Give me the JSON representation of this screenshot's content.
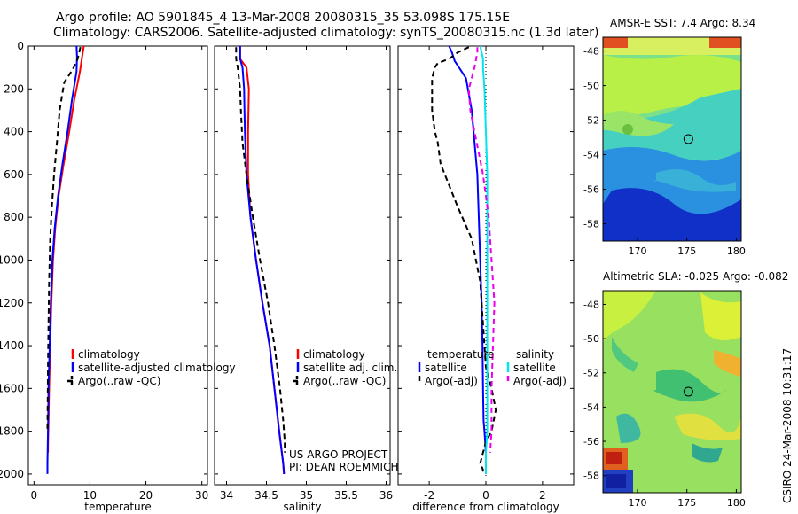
{
  "title_line1": "Argo profile: AO 5901845_4 13-Mar-2008 20080315_35 53.098S 175.15E",
  "title_line2": "Climatology: CARS2006. Satellite-adjusted climatology: synTS_20080315.nc (1.3d later)",
  "map_titles": [
    "AMSR-E SST: 7.4 Argo: 8.34",
    "Altimetric SLA: -0.025 Argo: -0.082"
  ],
  "side_stamp": "CSIRO 24-Mar-2008 10:31:17",
  "project_note": [
    "US ARGO PROJECT",
    "PI: DEAN ROEMMICH"
  ],
  "colors": {
    "climatology": "#ff0000",
    "satellite": "#0000ff",
    "argo": "#000000",
    "sat_diff_sal": "#00e5ee",
    "argo_diff_sal": "#ee00ee"
  },
  "chart_data": [
    {
      "type": "line",
      "xlabel": "temperature",
      "ylabel": "",
      "xlim": [
        -1,
        31
      ],
      "ylim": [
        2050,
        0
      ],
      "xticks": [
        0,
        10,
        20,
        30
      ],
      "yticks": [
        0,
        200,
        400,
        600,
        800,
        1000,
        1200,
        1400,
        1600,
        1800,
        2000
      ],
      "legend": [
        "climatology",
        "satellite-adjusted climatology",
        "Argo(..raw -QC)"
      ],
      "series": [
        {
          "name": "climatology",
          "color": "#ff0000",
          "dash": "",
          "x": [
            8.9,
            8.6,
            8.2,
            7.2,
            6.3,
            5.3,
            4.4,
            3.8,
            3.4,
            3.1,
            2.9,
            2.7,
            2.6,
            2.5,
            2.5
          ],
          "y": [
            0,
            50,
            120,
            250,
            400,
            550,
            700,
            850,
            1000,
            1200,
            1400,
            1600,
            1750,
            1870,
            1900
          ]
        },
        {
          "name": "satellite-adjusted climatology",
          "color": "#0000ff",
          "dash": "",
          "x": [
            7.6,
            7.7,
            7.6,
            6.8,
            6.0,
            5.1,
            4.3,
            3.7,
            3.3,
            3.0,
            2.8,
            2.6,
            2.5,
            2.4,
            2.4
          ],
          "y": [
            0,
            50,
            120,
            250,
            400,
            550,
            700,
            850,
            1000,
            1200,
            1400,
            1600,
            1800,
            1950,
            2000
          ]
        },
        {
          "name": "Argo(..raw -QC)",
          "color": "#000000",
          "dash": "6,4",
          "x": [
            8.3,
            7.8,
            6.9,
            5.4,
            4.6,
            4.1,
            3.6,
            3.2,
            2.9,
            2.7,
            2.6,
            2.5,
            2.45,
            2.4,
            2.4
          ],
          "y": [
            5,
            60,
            110,
            170,
            300,
            450,
            600,
            750,
            900,
            1100,
            1300,
            1500,
            1650,
            1780,
            1800
          ]
        }
      ]
    },
    {
      "type": "line",
      "xlabel": "salinity",
      "ylabel": "",
      "xlim": [
        33.85,
        36.05
      ],
      "ylim": [
        2050,
        0
      ],
      "xticks": [
        34,
        34.5,
        35,
        35.5,
        36
      ],
      "yticks": [
        0,
        200,
        400,
        600,
        800,
        1000,
        1200,
        1400,
        1600,
        1800,
        2000
      ],
      "legend": [
        "climatology",
        "satellite adj. clim.",
        "Argo(..raw -QC)"
      ],
      "series": [
        {
          "name": "climatology",
          "color": "#ff0000",
          "dash": "",
          "x": [
            34.17,
            34.17,
            34.25,
            34.28,
            34.27,
            34.27,
            34.3,
            34.37,
            34.45,
            34.54,
            34.6,
            34.66,
            34.71,
            34.72
          ],
          "y": [
            0,
            60,
            100,
            200,
            400,
            600,
            800,
            1000,
            1200,
            1400,
            1600,
            1800,
            1950,
            2000
          ]
        },
        {
          "name": "satellite adj. clim.",
          "color": "#0000ff",
          "dash": "",
          "x": [
            34.17,
            34.17,
            34.2,
            34.22,
            34.23,
            34.25,
            34.3,
            34.37,
            34.45,
            34.54,
            34.6,
            34.66,
            34.71,
            34.72
          ],
          "y": [
            0,
            60,
            100,
            200,
            400,
            600,
            800,
            1000,
            1200,
            1400,
            1600,
            1800,
            1950,
            2000
          ]
        },
        {
          "name": "Argo(..raw -QC)",
          "color": "#000000",
          "dash": "6,4",
          "x": [
            34.12,
            34.12,
            34.14,
            34.17,
            34.18,
            34.2,
            34.25,
            34.33,
            34.42,
            34.52,
            34.6,
            34.67,
            34.71,
            34.73,
            34.73
          ],
          "y": [
            5,
            60,
            100,
            200,
            300,
            450,
            600,
            800,
            1000,
            1200,
            1400,
            1600,
            1750,
            1850,
            1900
          ]
        }
      ]
    },
    {
      "type": "line",
      "xlabel": "difference from climatology",
      "ylabel": "",
      "xlim": [
        -3.1,
        3.1
      ],
      "ylim": [
        2050,
        0
      ],
      "xticks": [
        -2,
        0,
        2
      ],
      "yticks": [
        0,
        200,
        400,
        600,
        800,
        1000,
        1200,
        1400,
        1600,
        1800,
        2000
      ],
      "legend": [
        "temperature",
        "satellite",
        "Argo(-adj)",
        "salinity",
        "satellite",
        "Argo(-adj)"
      ],
      "series": [
        {
          "name": "satellite",
          "color": "#0000ff",
          "dash": "",
          "x": [
            -1.3,
            -1.2,
            -1.1,
            -0.7,
            -0.5,
            -0.4,
            -0.3,
            -0.25,
            -0.2,
            -0.15,
            -0.12,
            -0.1,
            -0.08,
            -0.05,
            0.0,
            0.0
          ],
          "y": [
            0,
            30,
            70,
            150,
            300,
            450,
            600,
            800,
            1000,
            1200,
            1400,
            1600,
            1750,
            1800,
            1900,
            2000
          ]
        },
        {
          "name": "Argo(-adj)",
          "color": "#000000",
          "dash": "6,4",
          "x": [
            -0.6,
            -1.0,
            -1.3,
            -1.7,
            -1.8,
            -1.9,
            -1.9,
            -1.8,
            -1.7,
            -1.6,
            -1.3,
            -1.0,
            -0.5,
            -0.2,
            -0.1,
            0.0,
            0.2,
            0.35,
            0.2,
            0.0,
            -0.1,
            -0.2,
            -0.1,
            -0.15
          ],
          "y": [
            5,
            30,
            60,
            80,
            100,
            150,
            300,
            400,
            450,
            550,
            650,
            750,
            900,
            1100,
            1300,
            1500,
            1600,
            1700,
            1800,
            1850,
            1900,
            1950,
            1980,
            2000
          ]
        },
        {
          "name": "satellite",
          "color": "#00e5ee",
          "dash": "",
          "x": [
            -0.2,
            -0.1,
            -0.1,
            -0.05,
            0.0,
            0.05,
            0.05,
            0.05,
            0.05,
            0.05,
            0.05,
            0.05,
            0.05,
            0.0,
            0.0
          ],
          "y": [
            0,
            60,
            100,
            200,
            400,
            600,
            800,
            1000,
            1200,
            1400,
            1600,
            1700,
            1800,
            1900,
            2000
          ]
        },
        {
          "name": "Argo(-adj)",
          "color": "#ee00ee",
          "dash": "6,4",
          "x": [
            -0.3,
            -0.3,
            -0.4,
            -0.6,
            -0.55,
            -0.4,
            -0.1,
            0.1,
            0.2,
            0.3,
            0.25,
            0.2,
            0.2,
            0.15
          ],
          "y": [
            5,
            30,
            100,
            200,
            300,
            400,
            600,
            800,
            1000,
            1200,
            1400,
            1600,
            1800,
            1900
          ]
        }
      ]
    },
    {
      "type": "heatmap",
      "title": "AMSR-E SST: 7.4 Argo: 8.34",
      "xlim": [
        166.5,
        180.5
      ],
      "ylim": [
        -59,
        -47.2
      ],
      "xticks": [
        170,
        175,
        180
      ],
      "yticks": [
        -48,
        -50,
        -52,
        -54,
        -56,
        -58
      ],
      "argo_location": [
        175.15,
        -53.1
      ]
    },
    {
      "type": "heatmap",
      "title": "Altimetric SLA: -0.025 Argo: -0.082",
      "xlim": [
        166.5,
        180.5
      ],
      "ylim": [
        -59,
        -47.2
      ],
      "xticks": [
        170,
        175,
        180
      ],
      "yticks": [
        -48,
        -50,
        -52,
        -54,
        -56,
        -58
      ],
      "argo_location": [
        175.15,
        -53.1
      ]
    }
  ]
}
